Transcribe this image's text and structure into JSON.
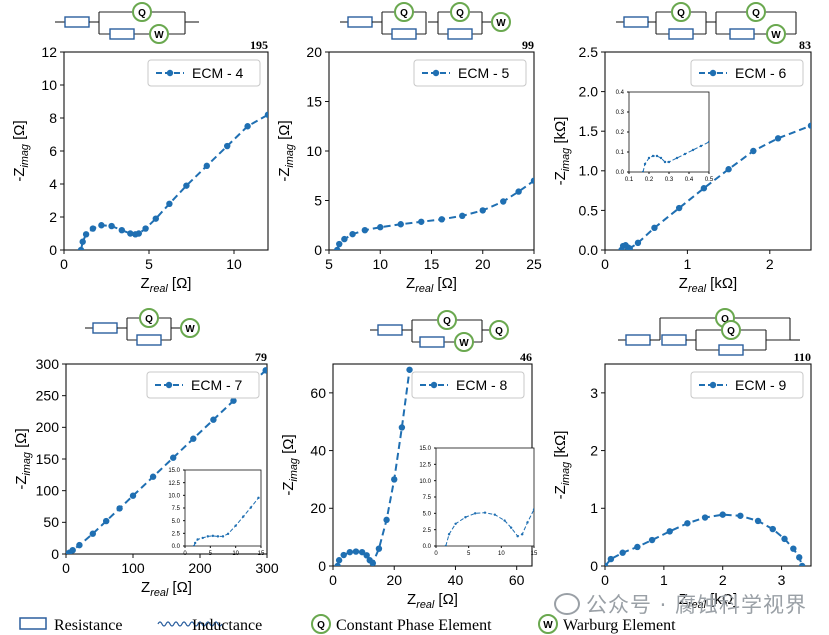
{
  "colors": {
    "series": "#1f6fb2",
    "circuit": "#2b5f9e",
    "element_ring": "#6aa84f",
    "axis": "#111111",
    "watermark": "#9aa0a6"
  },
  "legend_keys": {
    "resistance": "Resistance",
    "inductance": "Inductance",
    "constant_phase": "Constant Phase Element",
    "warburg": "Warburg Element",
    "q_symbol": "Q",
    "w_symbol": "W"
  },
  "watermark": "公众号 · 腐蚀科学视界",
  "chart_data": [
    {
      "type": "line",
      "legend": "ECM - 4",
      "annotation": "195",
      "xlabel": "Z_real [Ω]",
      "ylabel": "-Z_imag [Ω]",
      "xlim": [
        0,
        12
      ],
      "ylim": [
        0,
        12
      ],
      "xticks": [
        0,
        5,
        10
      ],
      "yticks": [
        0,
        2,
        4,
        6,
        8,
        10,
        12
      ],
      "x": [
        1.0,
        1.1,
        1.3,
        1.7,
        2.2,
        2.8,
        3.4,
        3.9,
        4.2,
        4.4,
        4.8,
        5.4,
        6.2,
        7.2,
        8.4,
        9.6,
        10.8,
        12.0
      ],
      "y": [
        0.0,
        0.5,
        0.95,
        1.3,
        1.5,
        1.45,
        1.2,
        1.0,
        0.95,
        1.0,
        1.3,
        1.9,
        2.8,
        3.9,
        5.1,
        6.3,
        7.5,
        8.2
      ]
    },
    {
      "type": "line",
      "legend": "ECM - 5",
      "annotation": "99",
      "xlabel": "Z_real [Ω]",
      "ylabel": "-Z_imag [Ω]",
      "xlim": [
        5,
        25
      ],
      "ylim": [
        0,
        20
      ],
      "xticks": [
        5,
        10,
        15,
        20,
        25
      ],
      "yticks": [
        0,
        5,
        10,
        15,
        20
      ],
      "x": [
        5.8,
        6.0,
        6.5,
        7.3,
        8.5,
        10.0,
        12.0,
        14.0,
        16.0,
        18.0,
        20.0,
        22.0,
        23.5,
        25.0
      ],
      "y": [
        0.0,
        0.6,
        1.1,
        1.6,
        2.0,
        2.3,
        2.6,
        2.85,
        3.1,
        3.45,
        4.0,
        4.9,
        5.9,
        7.0
      ]
    },
    {
      "type": "line",
      "legend": "ECM - 6",
      "annotation": "83",
      "xlabel": "Z_real [kΩ]",
      "ylabel": "-Z_imag [kΩ]",
      "xlim": [
        0,
        2.5
      ],
      "ylim": [
        0,
        2.5
      ],
      "xticks": [
        0,
        1,
        2
      ],
      "yticks": [
        0.0,
        0.5,
        1.0,
        1.5,
        2.0,
        2.5
      ],
      "x": [
        0.2,
        0.22,
        0.25,
        0.28,
        0.3,
        0.4,
        0.6,
        0.9,
        1.2,
        1.5,
        1.8,
        2.1,
        2.5
      ],
      "y": [
        0.0,
        0.05,
        0.06,
        0.03,
        0.02,
        0.09,
        0.28,
        0.53,
        0.78,
        1.02,
        1.25,
        1.41,
        1.57
      ],
      "inset": {
        "xlim": [
          0.1,
          0.5
        ],
        "ylim": [
          0.0,
          0.4
        ],
        "xticks": [
          0.1,
          0.2,
          0.3,
          0.4,
          0.5
        ],
        "yticks": [
          0.0,
          0.1,
          0.2,
          0.3,
          0.4
        ],
        "x": [
          0.17,
          0.18,
          0.2,
          0.22,
          0.24,
          0.26,
          0.28,
          0.3,
          0.34,
          0.38,
          0.42,
          0.46,
          0.5
        ],
        "y": [
          0.0,
          0.04,
          0.07,
          0.08,
          0.08,
          0.07,
          0.05,
          0.05,
          0.07,
          0.09,
          0.11,
          0.13,
          0.15
        ]
      }
    },
    {
      "type": "line",
      "legend": "ECM - 7",
      "annotation": "79",
      "xlabel": "Z_real [Ω]",
      "ylabel": "-Z_imag [Ω]",
      "xlim": [
        0,
        300
      ],
      "ylim": [
        0,
        300
      ],
      "xticks": [
        0,
        100,
        200,
        300
      ],
      "yticks": [
        0,
        50,
        100,
        150,
        200,
        250,
        300
      ],
      "x": [
        2,
        5,
        10,
        20,
        40,
        60,
        80,
        100,
        130,
        160,
        190,
        220,
        250,
        280,
        298
      ],
      "y": [
        0,
        2,
        6,
        14,
        32,
        52,
        72,
        92,
        122,
        152,
        182,
        212,
        242,
        272,
        290
      ],
      "inset": {
        "xlim": [
          0,
          15
        ],
        "ylim": [
          0,
          15
        ],
        "xticks": [
          0,
          5,
          10,
          15
        ],
        "yticks": [
          0.0,
          2.5,
          5.0,
          7.5,
          10.0,
          12.5,
          15.0
        ],
        "x": [
          1.8,
          2.0,
          2.5,
          3.5,
          4.5,
          5.5,
          6.5,
          7.5,
          8.5,
          10,
          11.5,
          13,
          14.5
        ],
        "y": [
          0.0,
          0.6,
          1.3,
          1.6,
          1.9,
          2.0,
          1.9,
          1.9,
          2.4,
          4.0,
          5.8,
          7.6,
          9.5
        ]
      }
    },
    {
      "type": "line",
      "legend": "ECM - 8",
      "annotation": "46",
      "xlabel": "Z_real [Ω]",
      "ylabel": "-Z_imag [Ω]",
      "xlim": [
        0,
        65
      ],
      "ylim": [
        0,
        70
      ],
      "xticks": [
        0,
        20,
        40,
        60
      ],
      "yticks": [
        0,
        20,
        40,
        60
      ],
      "x": [
        1.5,
        2.0,
        3.5,
        5.5,
        7.5,
        9.5,
        11.0,
        12.0,
        13.0,
        15.0,
        17.5,
        20.0,
        22.5,
        25.0
      ],
      "y": [
        0.0,
        2.0,
        3.8,
        4.8,
        5.0,
        4.8,
        3.7,
        2.0,
        1.0,
        6.0,
        16.0,
        30.0,
        48.0,
        68.0
      ],
      "inset": {
        "xlim": [
          0,
          15
        ],
        "ylim": [
          0,
          15
        ],
        "xticks": [
          0,
          5,
          10,
          15
        ],
        "yticks": [
          0.0,
          2.5,
          5.0,
          7.5,
          10.0,
          12.5,
          15.0
        ],
        "x": [
          1.5,
          2.0,
          3.0,
          4.5,
          6.0,
          7.5,
          9.0,
          10.5,
          11.5,
          12.5,
          13.2,
          14.0,
          15.0
        ],
        "y": [
          0.0,
          1.8,
          3.4,
          4.4,
          5.0,
          5.1,
          4.8,
          3.9,
          2.8,
          1.5,
          1.8,
          3.6,
          5.6
        ]
      }
    },
    {
      "type": "line",
      "legend": "ECM - 9",
      "annotation": "110",
      "xlabel": "Z_real [kΩ]",
      "ylabel": "-Z_imag [kΩ]",
      "xlim": [
        0,
        3.5
      ],
      "ylim": [
        0,
        3.5
      ],
      "xticks": [
        0,
        1,
        2,
        3
      ],
      "yticks": [
        0,
        1,
        2,
        3
      ],
      "x": [
        0.0,
        0.1,
        0.3,
        0.55,
        0.8,
        1.1,
        1.4,
        1.7,
        2.0,
        2.3,
        2.6,
        2.85,
        3.05,
        3.2,
        3.3,
        3.35
      ],
      "y": [
        0.0,
        0.12,
        0.23,
        0.33,
        0.45,
        0.6,
        0.74,
        0.84,
        0.89,
        0.87,
        0.78,
        0.64,
        0.47,
        0.3,
        0.15,
        0.0
      ]
    }
  ]
}
